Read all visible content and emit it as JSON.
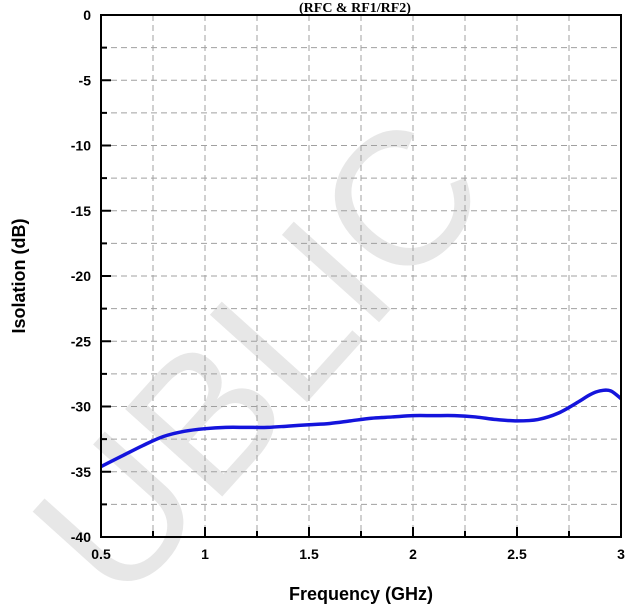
{
  "chart_data": {
    "type": "line",
    "title": "(RFC & RF1/RF2)",
    "xlabel": "Frequency (GHz)",
    "ylabel": "Isolation (dB)",
    "xlim": [
      0.5,
      3
    ],
    "ylim": [
      -40,
      0
    ],
    "x_major_ticks": [
      0.5,
      1,
      1.5,
      2,
      2.5,
      3
    ],
    "x_tick_labels": [
      "0.5",
      "1",
      "1.5",
      "2",
      "2.5",
      "3"
    ],
    "y_major_ticks": [
      0,
      -5,
      -10,
      -15,
      -20,
      -25,
      -30,
      -35,
      -40
    ],
    "y_tick_labels": [
      "0",
      "-5",
      "-10",
      "-15",
      "-20",
      "-25",
      "-30",
      "-35",
      "-40"
    ],
    "grid": true,
    "watermark": "UBLIC",
    "series": [
      {
        "color": "#1414dc",
        "x": [
          0.5,
          0.6,
          0.7,
          0.8,
          0.9,
          1.0,
          1.1,
          1.2,
          1.3,
          1.4,
          1.5,
          1.6,
          1.7,
          1.8,
          1.9,
          2.0,
          2.1,
          2.2,
          2.3,
          2.4,
          2.5,
          2.6,
          2.7,
          2.8,
          2.85,
          2.9,
          2.95,
          3.0
        ],
        "y": [
          -34.6,
          -33.8,
          -33.0,
          -32.3,
          -31.9,
          -31.7,
          -31.6,
          -31.6,
          -31.6,
          -31.5,
          -31.4,
          -31.3,
          -31.1,
          -30.9,
          -30.8,
          -30.7,
          -30.7,
          -30.7,
          -30.8,
          -31.0,
          -31.1,
          -31.0,
          -30.5,
          -29.6,
          -29.1,
          -28.8,
          -28.8,
          -29.4
        ]
      }
    ]
  }
}
